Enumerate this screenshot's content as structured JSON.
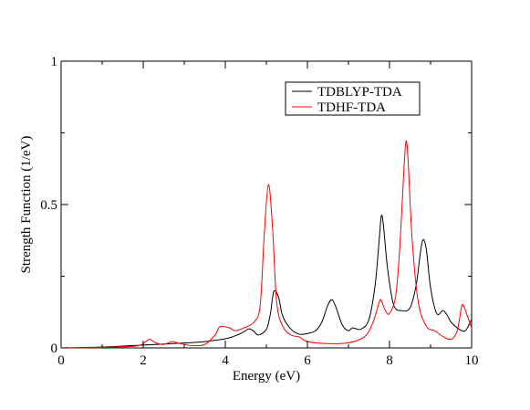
{
  "chart_data": {
    "type": "line",
    "xlabel": "Energy (eV)",
    "ylabel": "Strength Function (1/eV)",
    "xlim": [
      0,
      10
    ],
    "ylim": [
      0,
      1
    ],
    "x_ticks": [
      0,
      2,
      4,
      6,
      8,
      10
    ],
    "x_tick_labels": [
      "0",
      "2",
      "4",
      "6",
      "8",
      "10"
    ],
    "y_ticks": [
      0,
      0.5,
      1
    ],
    "y_tick_labels": [
      "0",
      "0.5",
      "1"
    ],
    "grid": false,
    "legend_position": "top-right",
    "series": [
      {
        "name": "TDBLYP-TDA",
        "color": "#000000",
        "x": [
          0,
          1,
          2,
          3,
          3.5,
          4,
          4.2,
          4.4,
          4.55,
          4.6,
          4.7,
          4.8,
          5.0,
          5.1,
          5.15,
          5.2,
          5.3,
          5.4,
          5.6,
          5.8,
          6.0,
          6.2,
          6.35,
          6.5,
          6.6,
          6.7,
          6.85,
          7.0,
          7.1,
          7.3,
          7.5,
          7.65,
          7.75,
          7.8,
          7.85,
          7.95,
          8.1,
          8.3,
          8.5,
          8.65,
          8.75,
          8.82,
          8.9,
          9.0,
          9.15,
          9.3,
          9.4,
          9.5,
          9.7,
          9.85,
          10.0
        ],
        "y": [
          0.0,
          0.003,
          0.01,
          0.017,
          0.022,
          0.032,
          0.04,
          0.052,
          0.065,
          0.066,
          0.058,
          0.045,
          0.065,
          0.12,
          0.175,
          0.2,
          0.175,
          0.11,
          0.065,
          0.048,
          0.05,
          0.06,
          0.09,
          0.15,
          0.168,
          0.14,
          0.08,
          0.06,
          0.07,
          0.065,
          0.1,
          0.22,
          0.38,
          0.46,
          0.43,
          0.28,
          0.15,
          0.13,
          0.14,
          0.22,
          0.33,
          0.378,
          0.34,
          0.21,
          0.12,
          0.13,
          0.115,
          0.09,
          0.065,
          0.06,
          0.1
        ]
      },
      {
        "name": "TDHF-TDA",
        "color": "#ff0000",
        "x": [
          0,
          1,
          1.8,
          2.0,
          2.15,
          2.3,
          2.5,
          2.7,
          2.9,
          3.2,
          3.5,
          3.75,
          3.85,
          3.95,
          4.1,
          4.25,
          4.45,
          4.7,
          4.85,
          4.95,
          5.05,
          5.15,
          5.25,
          5.4,
          5.6,
          5.8,
          6.0,
          6.5,
          7.0,
          7.4,
          7.6,
          7.75,
          7.8,
          7.9,
          8.0,
          8.15,
          8.25,
          8.35,
          8.4,
          8.45,
          8.55,
          8.7,
          8.9,
          9.1,
          9.3,
          9.5,
          9.65,
          9.75,
          9.8,
          9.9,
          10.0
        ],
        "y": [
          0.0,
          0.002,
          0.006,
          0.015,
          0.03,
          0.018,
          0.012,
          0.022,
          0.015,
          0.008,
          0.012,
          0.045,
          0.072,
          0.075,
          0.07,
          0.06,
          0.07,
          0.09,
          0.15,
          0.4,
          0.57,
          0.42,
          0.16,
          0.075,
          0.045,
          0.038,
          0.022,
          0.015,
          0.018,
          0.04,
          0.09,
          0.16,
          0.165,
          0.13,
          0.12,
          0.18,
          0.35,
          0.62,
          0.72,
          0.66,
          0.38,
          0.16,
          0.075,
          0.06,
          0.04,
          0.03,
          0.06,
          0.14,
          0.148,
          0.11,
          0.07
        ]
      }
    ]
  }
}
